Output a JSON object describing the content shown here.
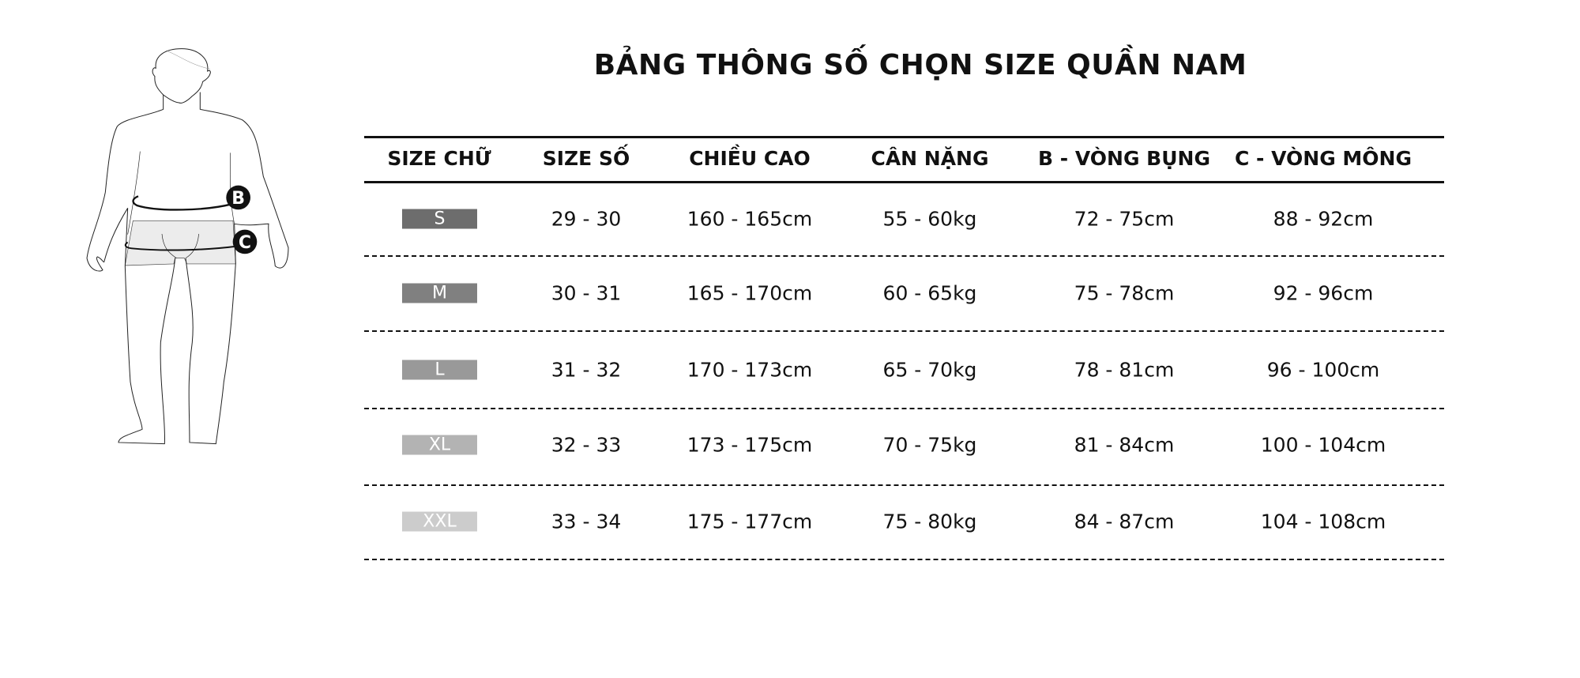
{
  "title": "BẢNG THÔNG SỐ CHỌN SIZE QUẦN NAM",
  "figure": {
    "label_b": "B",
    "label_c": "C"
  },
  "headers": [
    "SIZE CHỮ",
    "SIZE SỐ",
    "CHIỀU CAO",
    "CÂN NẶNG",
    "B - VÒNG BỤNG",
    "C - VÒNG MÔNG"
  ],
  "rows": [
    {
      "size": "S",
      "color": "#6d6d6d",
      "cells": [
        "29 - 30",
        "160 - 165cm",
        "55 - 60kg",
        "72 - 75cm",
        "88 - 92cm"
      ]
    },
    {
      "size": "M",
      "color": "#808080",
      "cells": [
        "30 - 31",
        "165 - 170cm",
        "60 - 65kg",
        "75 - 78cm",
        "92 - 96cm"
      ]
    },
    {
      "size": "L",
      "color": "#999999",
      "cells": [
        "31 - 32",
        "170 - 173cm",
        "65 - 70kg",
        "78 - 81cm",
        "96 - 100cm"
      ]
    },
    {
      "size": "XL",
      "color": "#b3b3b3",
      "cells": [
        "32 - 33",
        "173 - 175cm",
        "70 - 75kg",
        "81 - 84cm",
        "100 - 104cm"
      ]
    },
    {
      "size": "XXL",
      "color": "#cccccc",
      "cells": [
        "33 - 34",
        "175 - 177cm",
        "75 - 80kg",
        "84 - 87cm",
        "104 - 108cm"
      ]
    }
  ]
}
